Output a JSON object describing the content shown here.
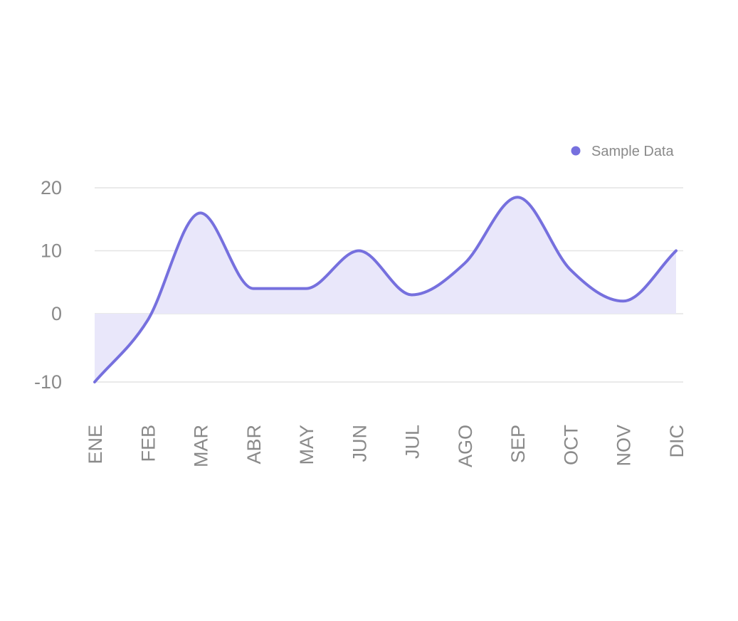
{
  "chart_data": {
    "type": "area",
    "categories": [
      "ENE",
      "FEB",
      "MAR",
      "ABR",
      "MAY",
      "JUN",
      "JUL",
      "AGO",
      "SEP",
      "OCT",
      "NOV",
      "DIC"
    ],
    "series": [
      {
        "name": "Sample Data",
        "values": [
          -10,
          -1,
          16,
          4,
          4,
          10,
          3,
          8,
          18.5,
          7,
          2,
          10
        ],
        "color": "#7670de",
        "fill": "#e9e7fa"
      }
    ],
    "yticks": [
      "20",
      "10",
      "0",
      "-10"
    ],
    "ylim": [
      -10,
      20
    ],
    "grid": true,
    "legend_position": "top-right",
    "curve": "smooth"
  }
}
